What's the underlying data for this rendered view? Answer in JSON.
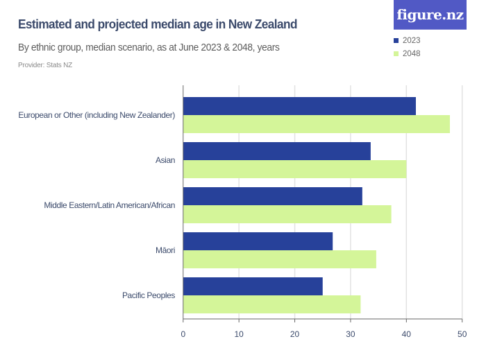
{
  "header": {
    "title": "Estimated and projected median age in New Zealand",
    "subtitle": "By ethnic group, median scenario, as at June 2023 & 2048, years",
    "provider": "Provider: Stats NZ",
    "logo_text": "figure.nz",
    "logo_color": "#5159c5"
  },
  "chart_data": {
    "type": "bar",
    "orientation": "horizontal",
    "title": "Estimated and projected median age in New Zealand",
    "subtitle": "By ethnic group, median scenario, as at June 2023 & 2048, years",
    "categories": [
      "European or Other (including New Zealander)",
      "Asian",
      "Middle Eastern/Latin American/African",
      "Māori",
      "Pacific Peoples"
    ],
    "series": [
      {
        "name": "2023",
        "color": "#27419a",
        "values": [
          41.7,
          33.6,
          32.1,
          26.8,
          25.0
        ]
      },
      {
        "name": "2048",
        "color": "#d4f599",
        "values": [
          47.8,
          40.0,
          37.3,
          34.6,
          31.8
        ]
      }
    ],
    "xlim": [
      0,
      50
    ],
    "xticks": [
      "0",
      "10",
      "20",
      "30",
      "40",
      "50"
    ],
    "grid": true,
    "legend_position": "top-right"
  }
}
